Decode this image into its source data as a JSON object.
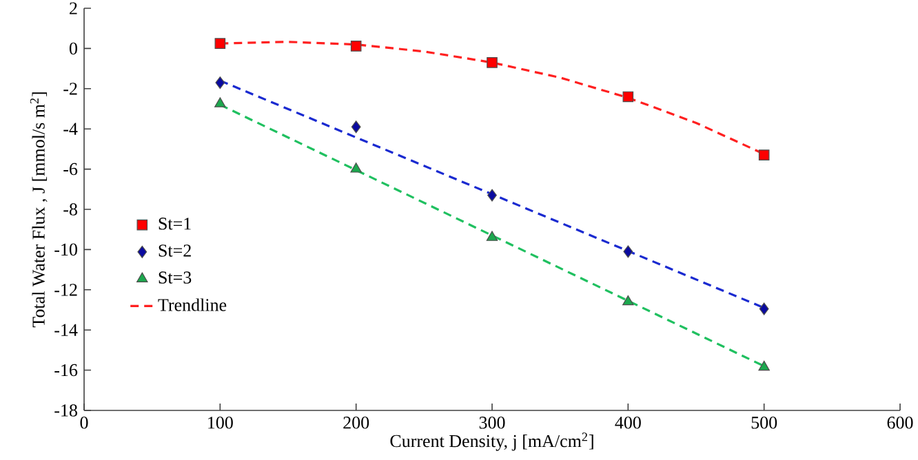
{
  "chart_data": {
    "type": "scatter",
    "xlabel": "Current Density, j [mA/cm$^{2}$]",
    "ylabel": "Total  Water  Flux , J [mmol/s m$^{2}$]",
    "xlim": [
      0,
      600
    ],
    "xticks": [
      0,
      100,
      200,
      300,
      400,
      500,
      600
    ],
    "ylim": [
      -18,
      2
    ],
    "yticks": [
      -18,
      -16,
      -14,
      -12,
      -10,
      -8,
      -6,
      -4,
      -2,
      0,
      2
    ],
    "grid": false,
    "legend": "left",
    "series": [
      {
        "name": "St=1",
        "marker": "square",
        "color": "#ff0000",
        "x": [
          100,
          200,
          300,
          400,
          500
        ],
        "values": [
          0.25,
          0.12,
          -0.7,
          -2.4,
          -5.3
        ]
      },
      {
        "name": "St=2",
        "marker": "diamond",
        "color": "#0a0aa0",
        "x": [
          100,
          200,
          300,
          400,
          500
        ],
        "values": [
          -1.7,
          -3.9,
          -7.3,
          -10.1,
          -12.95
        ]
      },
      {
        "name": "St=3",
        "marker": "triangle",
        "color": "#1ca84e",
        "x": [
          100,
          200,
          300,
          400,
          500
        ],
        "values": [
          -2.75,
          -6.0,
          -9.4,
          -12.6,
          -15.85
        ]
      },
      {
        "name": "Trendline",
        "type": "line",
        "line_style": "dashed",
        "marker": "none",
        "color": "#ff2020",
        "x": [
          100,
          150,
          200,
          250,
          300,
          350,
          400,
          450,
          500
        ],
        "values": [
          0.25,
          0.33,
          0.2,
          -0.15,
          -0.7,
          -1.45,
          -2.45,
          -3.7,
          -5.25
        ]
      },
      {
        "type": "line",
        "line_style": "dashed",
        "marker": "none",
        "color": "#1a2ad0",
        "x": [
          100,
          500
        ],
        "values": [
          -1.6,
          -12.9
        ]
      },
      {
        "type": "line",
        "line_style": "dashed",
        "marker": "none",
        "color": "#20c060",
        "x": [
          100,
          500
        ],
        "values": [
          -2.8,
          -15.8
        ]
      }
    ]
  }
}
